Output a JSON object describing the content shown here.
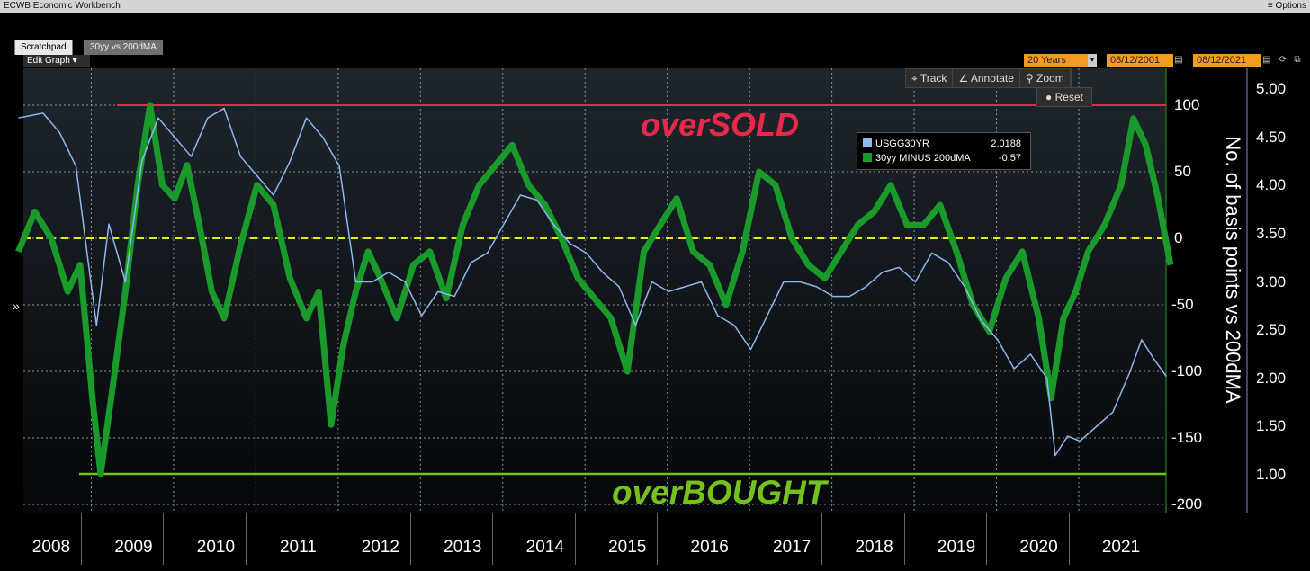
{
  "window": {
    "title": "ECWB Economic Workbench",
    "options_label": "≡ Options"
  },
  "tabs": [
    {
      "label": "Scratchpad"
    },
    {
      "label": "30yy vs 200dMA"
    }
  ],
  "edit_graph_label": "Edit Graph ▾",
  "range": {
    "period": "20 Years",
    "start": "08/12/2001",
    "end": "08/12/2021"
  },
  "toolbar": {
    "track": "Track",
    "annotate": "Annotate",
    "zoom": "Zoom",
    "reset": "Reset"
  },
  "legend": {
    "series1_name": "USGG30YR",
    "series1_value": "2.0188",
    "series1_color": "#8fb8ee",
    "series2_name": "30yy MINUS 200dMA",
    "series2_value": "-0.57",
    "series2_color": "#1a9a2a"
  },
  "annotations": {
    "oversold": "overSOLD",
    "overbought": "overBOUGHT"
  },
  "colors": {
    "oversold": "#e8294a",
    "overbought": "#74c21b",
    "zero_line": "#e8e822"
  },
  "chart_data": {
    "type": "line",
    "x_categories": [
      "2008",
      "2009",
      "2010",
      "2011",
      "2012",
      "2013",
      "2014",
      "2015",
      "2016",
      "2017",
      "2018",
      "2019",
      "2020",
      "2021"
    ],
    "y_right_label": "No. of basis points vs 200dMA",
    "y_right_ticks": [
      "100",
      "50",
      "0",
      "-50",
      "-100",
      "-150",
      "-200"
    ],
    "y_right_ticks_secondary": [
      "5.00",
      "4.50",
      "4.00",
      "3.50",
      "3.00",
      "2.50",
      "2.00",
      "1.50",
      "1.00"
    ],
    "y_right_range": [
      -200,
      100
    ],
    "y_right_secondary_range": [
      1.0,
      5.0
    ],
    "reference_lines": {
      "oversold": 100,
      "zero": 0,
      "overbought": -177
    },
    "series": [
      {
        "name": "USGG30YR",
        "color": "#8fb8ee",
        "x": [
          2007.6,
          2007.9,
          2008.1,
          2008.3,
          2008.45,
          2008.55,
          2008.7,
          2008.9,
          2009.1,
          2009.3,
          2009.5,
          2009.7,
          2009.9,
          2010.1,
          2010.3,
          2010.5,
          2010.7,
          2010.9,
          2011.1,
          2011.3,
          2011.5,
          2011.7,
          2011.9,
          2012.1,
          2012.3,
          2012.5,
          2012.7,
          2012.9,
          2013.1,
          2013.3,
          2013.5,
          2013.7,
          2013.9,
          2014.1,
          2014.3,
          2014.5,
          2014.7,
          2014.9,
          2015.1,
          2015.3,
          2015.5,
          2015.7,
          2015.9,
          2016.1,
          2016.3,
          2016.5,
          2016.7,
          2016.9,
          2017.1,
          2017.3,
          2017.5,
          2017.7,
          2017.9,
          2018.1,
          2018.3,
          2018.5,
          2018.7,
          2018.9,
          2019.1,
          2019.3,
          2019.5,
          2019.7,
          2019.9,
          2020.1,
          2020.2,
          2020.35,
          2020.5,
          2020.7,
          2020.9,
          2021.1,
          2021.25,
          2021.4,
          2021.55
        ],
        "y": [
          4.7,
          4.75,
          4.55,
          4.2,
          3.2,
          2.55,
          3.6,
          3.0,
          4.25,
          4.7,
          4.5,
          4.3,
          4.7,
          4.8,
          4.3,
          4.1,
          3.9,
          4.25,
          4.7,
          4.5,
          4.2,
          3.0,
          3.0,
          3.1,
          3.0,
          2.65,
          2.9,
          2.85,
          3.2,
          3.3,
          3.6,
          3.9,
          3.85,
          3.6,
          3.4,
          3.3,
          3.1,
          2.95,
          2.55,
          3.0,
          2.9,
          2.95,
          3.0,
          2.65,
          2.55,
          2.3,
          2.65,
          3.0,
          3.0,
          2.95,
          2.85,
          2.85,
          2.95,
          3.1,
          3.15,
          3.0,
          3.3,
          3.2,
          2.95,
          2.6,
          2.4,
          2.1,
          2.25,
          2.0,
          1.2,
          1.4,
          1.35,
          1.5,
          1.65,
          2.05,
          2.4,
          2.2,
          2.02
        ]
      },
      {
        "name": "30yy MINUS 200dMA",
        "color": "#1a9a2a",
        "x": [
          2007.6,
          2007.8,
          2008.0,
          2008.2,
          2008.35,
          2008.5,
          2008.6,
          2008.75,
          2008.9,
          2009.05,
          2009.2,
          2009.35,
          2009.5,
          2009.65,
          2009.8,
          2009.95,
          2010.1,
          2010.3,
          2010.5,
          2010.7,
          2010.9,
          2011.1,
          2011.25,
          2011.4,
          2011.55,
          2011.7,
          2011.85,
          2012.0,
          2012.2,
          2012.4,
          2012.6,
          2012.8,
          2013.0,
          2013.2,
          2013.4,
          2013.6,
          2013.8,
          2014.0,
          2014.2,
          2014.4,
          2014.6,
          2014.8,
          2015.0,
          2015.2,
          2015.4,
          2015.6,
          2015.8,
          2016.0,
          2016.2,
          2016.4,
          2016.6,
          2016.8,
          2017.0,
          2017.2,
          2017.4,
          2017.6,
          2017.8,
          2018.0,
          2018.2,
          2018.4,
          2018.6,
          2018.8,
          2019.0,
          2019.2,
          2019.4,
          2019.6,
          2019.8,
          2020.0,
          2020.15,
          2020.3,
          2020.45,
          2020.6,
          2020.8,
          2021.0,
          2021.15,
          2021.3,
          2021.45,
          2021.6
        ],
        "y": [
          -10,
          20,
          0,
          -40,
          -20,
          -120,
          -177,
          -110,
          -40,
          40,
          100,
          40,
          30,
          55,
          10,
          -40,
          -60,
          -5,
          40,
          25,
          -30,
          -60,
          -40,
          -140,
          -80,
          -40,
          -10,
          -30,
          -60,
          -20,
          -10,
          -45,
          10,
          40,
          55,
          70,
          40,
          25,
          0,
          -30,
          -45,
          -60,
          -100,
          -10,
          10,
          30,
          -10,
          -20,
          -50,
          -10,
          50,
          40,
          0,
          -20,
          -30,
          -10,
          10,
          20,
          40,
          10,
          10,
          25,
          -10,
          -50,
          -70,
          -30,
          -10,
          -60,
          -120,
          -60,
          -40,
          -10,
          10,
          40,
          90,
          70,
          30,
          -20
        ]
      }
    ]
  }
}
